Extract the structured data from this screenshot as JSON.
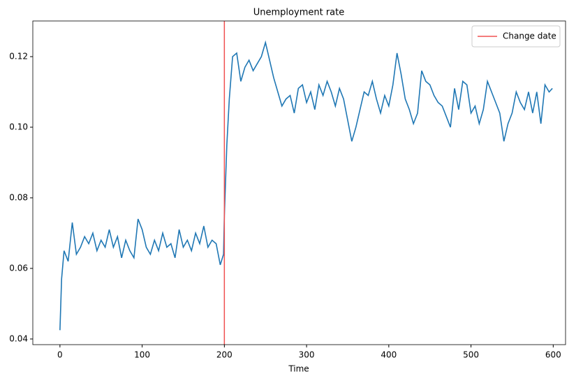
{
  "chart_data": {
    "type": "line",
    "title": "Unemployment rate",
    "xlabel": "Time",
    "x": [
      0,
      2,
      5,
      10,
      15,
      20,
      25,
      30,
      35,
      40,
      45,
      50,
      55,
      60,
      65,
      70,
      75,
      80,
      85,
      90,
      95,
      100,
      105,
      110,
      115,
      120,
      125,
      130,
      135,
      140,
      145,
      150,
      155,
      160,
      165,
      170,
      175,
      180,
      185,
      190,
      195,
      199,
      200,
      203,
      206,
      210,
      215,
      220,
      225,
      230,
      235,
      240,
      245,
      250,
      255,
      260,
      265,
      270,
      275,
      280,
      285,
      290,
      295,
      300,
      305,
      310,
      315,
      320,
      325,
      330,
      335,
      340,
      345,
      350,
      355,
      360,
      365,
      370,
      375,
      380,
      385,
      390,
      395,
      400,
      405,
      410,
      415,
      420,
      425,
      430,
      435,
      440,
      445,
      450,
      455,
      460,
      465,
      470,
      475,
      480,
      485,
      490,
      495,
      500,
      505,
      510,
      515,
      520,
      525,
      530,
      535,
      540,
      545,
      550,
      555,
      560,
      565,
      570,
      575,
      580,
      585,
      590,
      595,
      599
    ],
    "series": [
      {
        "name": "Unemployment rate",
        "color": "#1f77b4",
        "values": [
          0.0425,
          0.057,
          0.065,
          0.062,
          0.073,
          0.064,
          0.066,
          0.069,
          0.067,
          0.07,
          0.065,
          0.068,
          0.066,
          0.071,
          0.066,
          0.069,
          0.063,
          0.068,
          0.065,
          0.063,
          0.074,
          0.071,
          0.066,
          0.064,
          0.068,
          0.065,
          0.07,
          0.066,
          0.067,
          0.063,
          0.071,
          0.066,
          0.068,
          0.065,
          0.07,
          0.067,
          0.072,
          0.066,
          0.068,
          0.067,
          0.061,
          0.064,
          0.075,
          0.095,
          0.108,
          0.12,
          0.121,
          0.113,
          0.117,
          0.119,
          0.116,
          0.118,
          0.12,
          0.124,
          0.119,
          0.114,
          0.11,
          0.106,
          0.108,
          0.109,
          0.104,
          0.111,
          0.112,
          0.107,
          0.11,
          0.105,
          0.112,
          0.109,
          0.113,
          0.11,
          0.106,
          0.111,
          0.108,
          0.102,
          0.096,
          0.1,
          0.105,
          0.11,
          0.109,
          0.113,
          0.108,
          0.104,
          0.109,
          0.106,
          0.112,
          0.121,
          0.115,
          0.108,
          0.105,
          0.101,
          0.104,
          0.116,
          0.113,
          0.112,
          0.109,
          0.107,
          0.106,
          0.103,
          0.1,
          0.111,
          0.105,
          0.113,
          0.112,
          0.104,
          0.106,
          0.101,
          0.105,
          0.113,
          0.11,
          0.107,
          0.104,
          0.096,
          0.101,
          0.104,
          0.11,
          0.107,
          0.105,
          0.11,
          0.104,
          0.11,
          0.101,
          0.112,
          0.11,
          0.111
        ]
      }
    ],
    "vlines": [
      {
        "name": "Change date",
        "x": 200,
        "color": "#f05050"
      }
    ],
    "xlim": [
      -33,
      615
    ],
    "xticks": [
      0,
      100,
      200,
      300,
      400,
      500,
      600
    ],
    "ylim": [
      0.0384,
      0.1301
    ],
    "yticks": [
      0.04,
      0.06,
      0.08,
      {
        "value": 0.1,
        "label": "0.10"
      },
      0.12
    ],
    "legend": "upper right",
    "grid": false
  }
}
